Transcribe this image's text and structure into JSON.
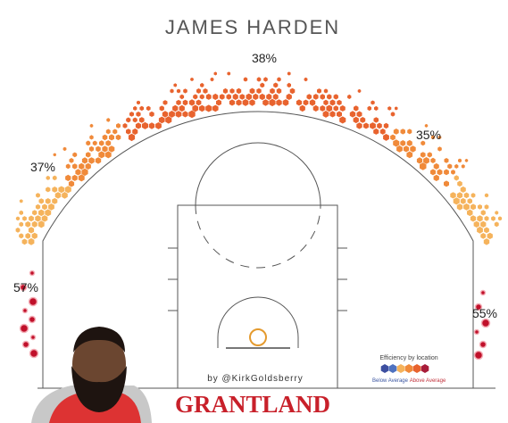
{
  "title": "JAMES HARDEN",
  "zones": [
    {
      "name": "top",
      "label": "38%"
    },
    {
      "name": "left-wing",
      "label": "37%"
    },
    {
      "name": "right-wing",
      "label": "35%"
    },
    {
      "name": "left-corner",
      "label": "57%"
    },
    {
      "name": "right-corner",
      "label": "55%"
    }
  ],
  "credit": "by @KirkGoldsberry",
  "legend": {
    "title": "Efficiency by location",
    "low": "Below Average",
    "high": "Above Average"
  },
  "brand": "GRANTLAND"
}
